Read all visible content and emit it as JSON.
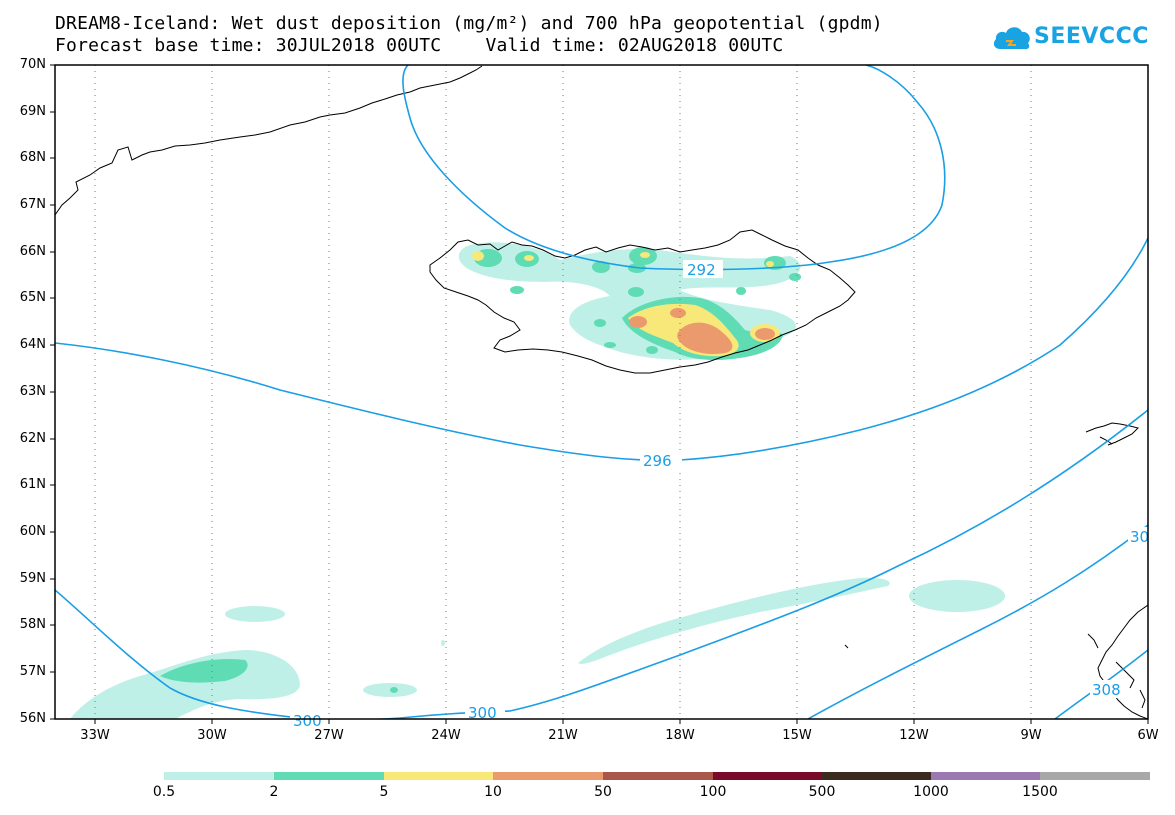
{
  "title": {
    "line1": "DREAM8-Iceland: Wet dust deposition (mg/m²) and 700 hPa geopotential (gpdm)",
    "line2": "Forecast base time: 30JUL2018 00UTC    Valid time: 02AUG2018 00UTC"
  },
  "logo": {
    "text": "SEEVCCC",
    "icon": "cloud-icon",
    "color": "#1aa3e2"
  },
  "axes": {
    "lat_labels": [
      "70N",
      "69N",
      "68N",
      "67N",
      "66N",
      "65N",
      "64N",
      "63N",
      "62N",
      "61N",
      "60N",
      "59N",
      "58N",
      "57N",
      "56N"
    ],
    "lon_labels": [
      "33W",
      "30W",
      "27W",
      "24W",
      "21W",
      "18W",
      "15W",
      "12W",
      "9W",
      "6W"
    ],
    "lat_range": [
      56,
      70
    ],
    "lon_range": [
      -34.5,
      -6
    ],
    "grid": "dotted"
  },
  "contours": {
    "color": "#1a9ee6",
    "labels": [
      "292",
      "296",
      "300",
      "300",
      "30",
      "308"
    ]
  },
  "colorbar": {
    "labels": [
      "0.5",
      "2",
      "5",
      "10",
      "50",
      "100",
      "500",
      "1000",
      "1500"
    ],
    "colors": [
      "#bff0e8",
      "#5fdcb4",
      "#f8e87a",
      "#eb9a6e",
      "#a8574a",
      "#7a0a2a",
      "#3b2a1e",
      "#9a79b0",
      "#a8a8a8"
    ]
  }
}
